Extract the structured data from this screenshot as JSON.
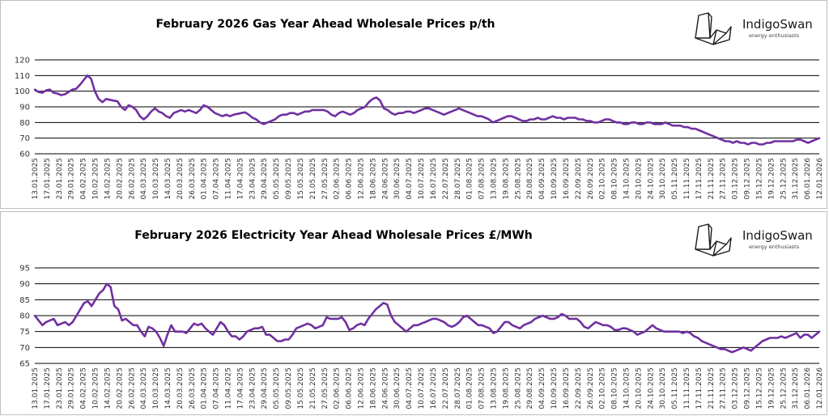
{
  "chart_data": [
    {
      "type": "line",
      "title": "February 2026 Gas Year Ahead Wholesale Prices p/th",
      "xlabel": "",
      "ylabel": "",
      "ylim": [
        60,
        120
      ],
      "yticks": [
        60,
        70,
        80,
        90,
        100,
        110,
        120
      ],
      "grid": true,
      "legend": "none",
      "color": "#7030A0",
      "x_tick_labels": [
        "13.01.2025",
        "17.01.2025",
        "23.01.2025",
        "29.01.2025",
        "04.02.2025",
        "10.02.2025",
        "14.02.2025",
        "20.02.2025",
        "26.02.2025",
        "04.03.2025",
        "10.03.2025",
        "14.03.2025",
        "20.03.2025",
        "26.03.2025",
        "01.04.2025",
        "07.04.2025",
        "11.04.2025",
        "17.04.2025",
        "23.04.2025",
        "29.04.2025",
        "05.05.2025",
        "09.05.2025",
        "15.05.2025",
        "21.05.2025",
        "27.05.2025",
        "02.06.2025",
        "06.06.2025",
        "12.06.2025",
        "18.06.2025",
        "24.06.2025",
        "30.06.2025",
        "04.07.2025",
        "10.07.2025",
        "16.07.2025",
        "22.07.2025",
        "28.07.2025",
        "01.08.2025",
        "07.08.2025",
        "13.08.2025",
        "19.08.2025",
        "25.08.2025",
        "29.08.2025",
        "04.09.2025",
        "10.09.2025",
        "16.09.2025",
        "22.09.2025",
        "26.09.2025",
        "02.10.2025",
        "08.10.2025",
        "14.10.2025",
        "20.10.2025",
        "24.10.2025",
        "30.10.2025",
        "05.11.2025",
        "11.11.2025",
        "17.11.2025",
        "21.11.2025",
        "27.11.2025",
        "03.12.2025",
        "09.12.2025",
        "15.12.2025",
        "19.12.2025",
        "25.12.2025",
        "31.12.2025",
        "06.01.2026",
        "12.01.2026"
      ],
      "series": [
        {
          "values": [
            101,
            99.5,
            99,
            100.5,
            101,
            99,
            98.5,
            97.5,
            98,
            99.5,
            101,
            101.5,
            104,
            107,
            110,
            108,
            100,
            95,
            93,
            95,
            94.5,
            94,
            93.5,
            90,
            88,
            91,
            90,
            88,
            84,
            82,
            84,
            87,
            89,
            87,
            86,
            84,
            83,
            86,
            87,
            88,
            87,
            88,
            87,
            86,
            88,
            91,
            90,
            88,
            86,
            85,
            84,
            85,
            84,
            85,
            85.5,
            86,
            86.5,
            85,
            83,
            82,
            80,
            79,
            80,
            81,
            82,
            84,
            85,
            85,
            86,
            86,
            85,
            86,
            87,
            87,
            88,
            88,
            88,
            88,
            87,
            85,
            84,
            86,
            87,
            86,
            85,
            86,
            88,
            89,
            90,
            93,
            95,
            96,
            94,
            89,
            88,
            86,
            85,
            86,
            86,
            87,
            87,
            86,
            87,
            88,
            89,
            89,
            88,
            87,
            86,
            85,
            86,
            87,
            88,
            89,
            88,
            87,
            86,
            85,
            84,
            84,
            83,
            82,
            80,
            81,
            82,
            83,
            84,
            84,
            83,
            82,
            81,
            81,
            82,
            82,
            83,
            82,
            82,
            83,
            84,
            83,
            83,
            82,
            83,
            83,
            83,
            82,
            82,
            81,
            81,
            80,
            80,
            81,
            82,
            82,
            81,
            80,
            80,
            79,
            79,
            80,
            80,
            79,
            79,
            80,
            80,
            79,
            79,
            79,
            80,
            79,
            78,
            78,
            78,
            77,
            77,
            76,
            76,
            75,
            74,
            73,
            72,
            71,
            70,
            69,
            68,
            68,
            67,
            68,
            67,
            67,
            66,
            67,
            67,
            66,
            66,
            67,
            67,
            68,
            68,
            68,
            68,
            68,
            68,
            69,
            69,
            68,
            67,
            68,
            69,
            70
          ]
        }
      ]
    },
    {
      "type": "line",
      "title": "February 2026 Electricity Year Ahead Wholesale Prices £/MWh",
      "xlabel": "",
      "ylabel": "",
      "ylim": [
        65,
        95
      ],
      "yticks": [
        65,
        70,
        75,
        80,
        85,
        90,
        95
      ],
      "grid": true,
      "legend": "none",
      "color": "#7030A0",
      "x_tick_labels": [
        "13.01.2025",
        "17.01.2025",
        "23.01.2025",
        "29.01.2025",
        "04.02.2025",
        "10.02.2025",
        "14.02.2025",
        "20.02.2025",
        "26.02.2025",
        "04.03.2025",
        "10.03.2025",
        "14.03.2025",
        "20.03.2025",
        "26.03.2025",
        "01.04.2025",
        "07.04.2025",
        "11.04.2025",
        "17.04.2025",
        "23.04.2025",
        "29.04.2025",
        "05.05.2025",
        "09.05.2025",
        "15.05.2025",
        "21.05.2025",
        "27.05.2025",
        "02.06.2025",
        "06.06.2025",
        "12.06.2025",
        "18.06.2025",
        "24.06.2025",
        "30.06.2025",
        "04.07.2025",
        "10.07.2025",
        "16.07.2025",
        "22.07.2025",
        "28.07.2025",
        "01.08.2025",
        "07.08.2025",
        "13.08.2025",
        "19.08.2025",
        "25.08.2025",
        "29.08.2025",
        "04.09.2025",
        "10.09.2025",
        "16.09.2025",
        "22.09.2025",
        "26.09.2025",
        "02.10.2025",
        "08.10.2025",
        "14.10.2025",
        "20.10.2025",
        "24.10.2025",
        "30.10.2025",
        "05.11.2025",
        "11.11.2025",
        "17.11.2025",
        "21.11.2025",
        "27.11.2025",
        "03.12.2025",
        "09.12.2025",
        "15.12.2025",
        "19.12.2025",
        "25.12.2025",
        "31.12.2025",
        "06.01.2026",
        "12.01.2026"
      ],
      "series": [
        {
          "values": [
            80,
            78.5,
            77,
            78,
            78.5,
            79,
            77,
            77.5,
            78,
            77,
            78,
            80,
            82,
            84,
            84.5,
            83,
            85,
            87,
            88,
            90,
            89,
            83,
            82,
            78.5,
            79,
            78,
            77,
            77,
            75,
            73.5,
            76.5,
            76,
            75,
            73,
            70.5,
            74,
            77,
            75,
            75,
            75,
            74.5,
            76,
            77.5,
            77,
            77.5,
            76,
            75,
            74,
            76,
            78,
            77,
            75,
            73.5,
            73.5,
            72.5,
            73.5,
            75,
            75.5,
            76,
            76,
            76.5,
            74,
            74,
            73,
            72,
            72,
            72.5,
            72.5,
            74,
            76,
            76.5,
            77,
            77.5,
            77,
            76,
            76.5,
            77,
            79.5,
            79,
            79,
            79,
            79.5,
            78,
            75.5,
            76,
            77,
            77.5,
            77,
            79,
            80.5,
            82,
            83,
            84,
            83.5,
            80,
            78,
            77,
            76,
            75,
            76,
            77,
            77,
            77.5,
            78,
            78.5,
            79,
            79,
            78.5,
            78,
            77,
            76.5,
            77,
            78,
            79.5,
            80,
            79,
            78,
            77,
            77,
            76.5,
            76,
            74.5,
            75,
            76.5,
            78,
            78,
            77,
            76.5,
            76,
            77,
            77.5,
            78,
            79,
            79.5,
            80,
            79.5,
            79,
            79,
            79.5,
            80.5,
            80,
            79,
            79,
            79,
            78,
            76.5,
            76,
            77,
            78,
            77.5,
            77,
            77,
            76.5,
            75.5,
            75.5,
            76,
            76,
            75.5,
            75,
            74,
            74.5,
            75,
            76,
            77,
            76,
            75.5,
            75,
            75,
            75,
            75,
            75,
            74.5,
            75,
            74.5,
            73.5,
            73,
            72,
            71.5,
            71,
            70.5,
            70,
            69.5,
            69.5,
            69,
            68.5,
            69,
            69.5,
            70,
            69.5,
            69,
            70,
            71,
            72,
            72.5,
            73,
            73,
            73,
            73.5,
            73,
            73.5,
            74,
            74.5,
            73,
            74,
            74,
            73,
            74,
            75
          ]
        }
      ]
    }
  ],
  "logo": {
    "name": "IndigoSwan",
    "tagline": "energy enthusiasts",
    "swan_icon": "origami-swan-icon"
  },
  "colors": {
    "line": "#7030A0",
    "grid": "#000000",
    "logo_stroke": "#1a1a1a"
  }
}
